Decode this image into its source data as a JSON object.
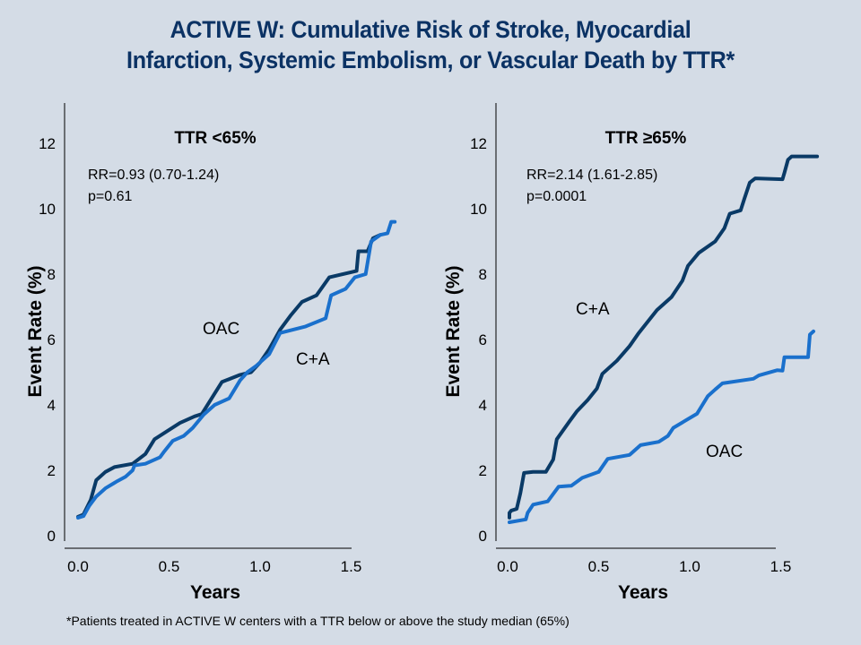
{
  "title": {
    "line1": "ACTIVE W: Cumulative Risk of Stroke, Myocardial",
    "line2": "Infarction, Systemic Embolism, or Vascular Death by TTR*"
  },
  "footnote": "*Patients treated in ACTIVE W centers with a TTR below or above the study median (65%)",
  "colors": {
    "background": "#D4DCE6",
    "title": "#0B3264",
    "dark_series": "#0A3A66",
    "bright_series": "#1A70CC"
  },
  "chart_data": [
    {
      "type": "line",
      "title": "TTR <65%",
      "annotation_rr": "RR=0.93 (0.70-1.24)",
      "annotation_p": "p=0.61",
      "xlabel": "Years",
      "ylabel": "Event Rate (%)",
      "xlim": [
        0,
        1.5
      ],
      "ylim": [
        0,
        12
      ],
      "xticks": [
        "0.0",
        "0.5",
        "1.0",
        "1.5"
      ],
      "yticks": [
        "0",
        "2",
        "4",
        "6",
        "8",
        "10",
        "12"
      ],
      "grid": false,
      "series": [
        {
          "name": "OAC",
          "color": "dark",
          "label": "OAC",
          "x": [
            0.0,
            0.03,
            0.07,
            0.1,
            0.15,
            0.2,
            0.3,
            0.37,
            0.42,
            0.49,
            0.56,
            0.64,
            0.68,
            0.79,
            0.89,
            0.95,
            1.0,
            1.05,
            1.11,
            1.17,
            1.23,
            1.31,
            1.38,
            1.53,
            1.54,
            1.59,
            1.62,
            1.66
          ],
          "y": [
            0.58,
            0.65,
            1.1,
            1.7,
            1.95,
            2.1,
            2.2,
            2.5,
            2.95,
            3.2,
            3.45,
            3.65,
            3.72,
            4.7,
            4.92,
            5.0,
            5.3,
            5.7,
            6.3,
            6.75,
            7.15,
            7.35,
            7.9,
            8.1,
            8.7,
            8.7,
            9.1,
            9.2
          ]
        },
        {
          "name": "C+A",
          "color": "bright",
          "label": "C+A",
          "x": [
            0.0,
            0.03,
            0.06,
            0.1,
            0.15,
            0.21,
            0.26,
            0.3,
            0.31,
            0.37,
            0.45,
            0.47,
            0.52,
            0.58,
            0.63,
            0.69,
            0.75,
            0.83,
            0.89,
            0.93,
            0.98,
            1.05,
            1.11,
            1.25,
            1.36,
            1.39,
            1.47,
            1.52,
            1.58,
            1.61,
            1.66,
            1.7,
            1.72,
            1.74
          ],
          "y": [
            0.55,
            0.6,
            0.9,
            1.2,
            1.45,
            1.65,
            1.8,
            2.0,
            2.15,
            2.2,
            2.4,
            2.55,
            2.9,
            3.05,
            3.3,
            3.7,
            4.0,
            4.2,
            4.75,
            5.0,
            5.2,
            5.55,
            6.2,
            6.4,
            6.65,
            7.35,
            7.55,
            7.9,
            8.0,
            9.0,
            9.2,
            9.25,
            9.6,
            9.6
          ]
        }
      ]
    },
    {
      "type": "line",
      "title": "TTR ≥65%",
      "annotation_rr": "RR=2.14 (1.61-2.85)",
      "annotation_p": "p=0.0001",
      "xlabel": "Years",
      "ylabel": "Event Rate (%)",
      "xlim": [
        0,
        1.5
      ],
      "ylim": [
        0,
        12
      ],
      "xticks": [
        "0.0",
        "0.5",
        "1.0",
        "1.5"
      ],
      "yticks": [
        "0",
        "2",
        "4",
        "6",
        "8",
        "10",
        "12"
      ],
      "grid": false,
      "series": [
        {
          "name": "C+A",
          "color": "dark",
          "label": "C+A",
          "x": [
            0.01,
            0.01,
            0.02,
            0.05,
            0.07,
            0.09,
            0.14,
            0.19,
            0.21,
            0.25,
            0.27,
            0.34,
            0.38,
            0.44,
            0.49,
            0.52,
            0.6,
            0.67,
            0.72,
            0.82,
            0.9,
            0.96,
            0.99,
            1.05,
            1.14,
            1.19,
            1.22,
            1.28,
            1.3,
            1.33,
            1.36,
            1.51,
            1.52,
            1.54,
            1.56,
            1.7
          ],
          "y": [
            0.55,
            0.7,
            0.77,
            0.82,
            1.3,
            1.92,
            1.95,
            1.95,
            1.95,
            2.33,
            2.95,
            3.5,
            3.8,
            4.15,
            4.5,
            4.95,
            5.35,
            5.8,
            6.2,
            6.9,
            7.3,
            7.8,
            8.25,
            8.65,
            9.0,
            9.4,
            9.85,
            9.95,
            10.3,
            10.8,
            10.93,
            10.9,
            11.1,
            11.5,
            11.6,
            11.6
          ]
        },
        {
          "name": "OAC",
          "color": "bright",
          "label": "OAC",
          "x": [
            0.01,
            0.1,
            0.11,
            0.14,
            0.22,
            0.28,
            0.35,
            0.41,
            0.5,
            0.55,
            0.67,
            0.73,
            0.83,
            0.88,
            0.91,
            0.97,
            1.04,
            1.07,
            1.1,
            1.14,
            1.18,
            1.35,
            1.38,
            1.48,
            1.51,
            1.52,
            1.65,
            1.66,
            1.68
          ],
          "y": [
            0.41,
            0.5,
            0.7,
            0.95,
            1.05,
            1.5,
            1.53,
            1.77,
            1.95,
            2.35,
            2.47,
            2.77,
            2.87,
            3.05,
            3.3,
            3.5,
            3.73,
            4.0,
            4.27,
            4.47,
            4.66,
            4.8,
            4.9,
            5.06,
            5.05,
            5.46,
            5.46,
            6.15,
            6.25
          ]
        }
      ]
    }
  ]
}
